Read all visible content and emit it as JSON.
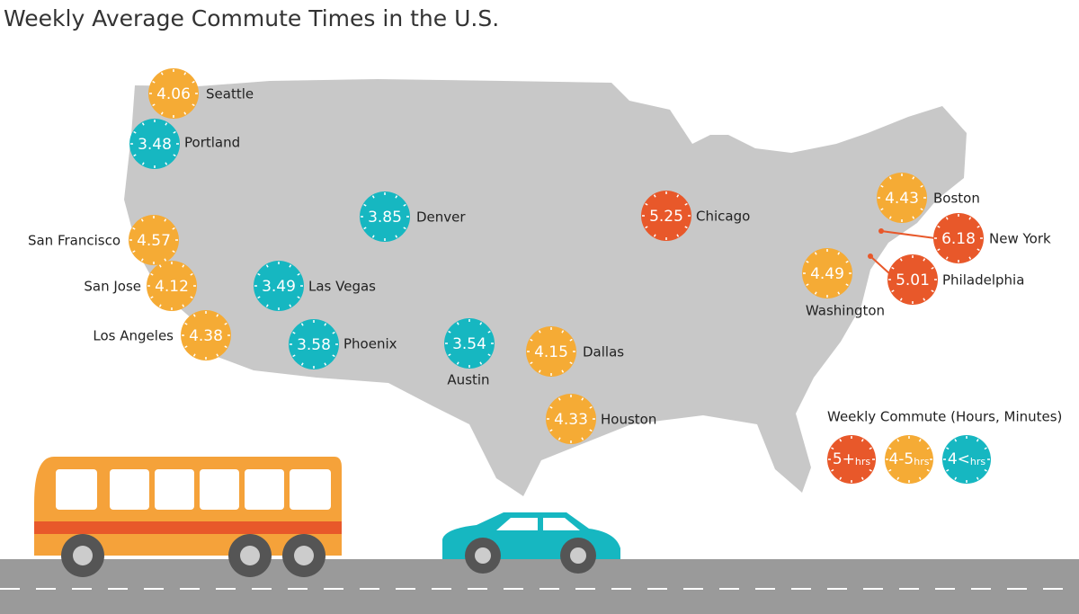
{
  "title": "Weekly Average Commute Times in the U.S.",
  "cities": [
    {
      "name": "Seattle",
      "value": "4.06",
      "color": "#f5ab35"
    },
    {
      "name": "Portland",
      "value": "3.48",
      "color": "#16b7c1"
    },
    {
      "name": "San Francisco",
      "value": "4.57",
      "color": "#f5ab35"
    },
    {
      "name": "San Jose",
      "value": "4.12",
      "color": "#f5ab35"
    },
    {
      "name": "Los Angeles",
      "value": "4.38",
      "color": "#f5ab35"
    },
    {
      "name": "Denver",
      "value": "3.85",
      "color": "#16b7c1"
    },
    {
      "name": "Las Vegas",
      "value": "3.49",
      "color": "#16b7c1"
    },
    {
      "name": "Phoenix",
      "value": "3.58",
      "color": "#16b7c1"
    },
    {
      "name": "Austin",
      "value": "3.54",
      "color": "#16b7c1"
    },
    {
      "name": "Dallas",
      "value": "4.15",
      "color": "#f5ab35"
    },
    {
      "name": "Houston",
      "value": "4.33",
      "color": "#f5ab35"
    },
    {
      "name": "Chicago",
      "value": "5.25",
      "color": "#e8582a"
    },
    {
      "name": "Boston",
      "value": "4.43",
      "color": "#f5ab35"
    },
    {
      "name": "New York",
      "value": "6.18",
      "color": "#e8582a"
    },
    {
      "name": "Philadelphia",
      "value": "5.01",
      "color": "#e8582a"
    },
    {
      "name": "Washington",
      "value": "4.49",
      "color": "#f5ab35"
    }
  ],
  "legend": {
    "title": "Weekly Commute (Hours, Minutes)",
    "items": [
      {
        "main": "5+",
        "unit": "hrs",
        "color": "#e8582a"
      },
      {
        "main": "4-5",
        "unit": "hrs",
        "color": "#f5ab35"
      },
      {
        "main": "4<",
        "unit": "hrs",
        "color": "#16b7c1"
      }
    ]
  }
}
